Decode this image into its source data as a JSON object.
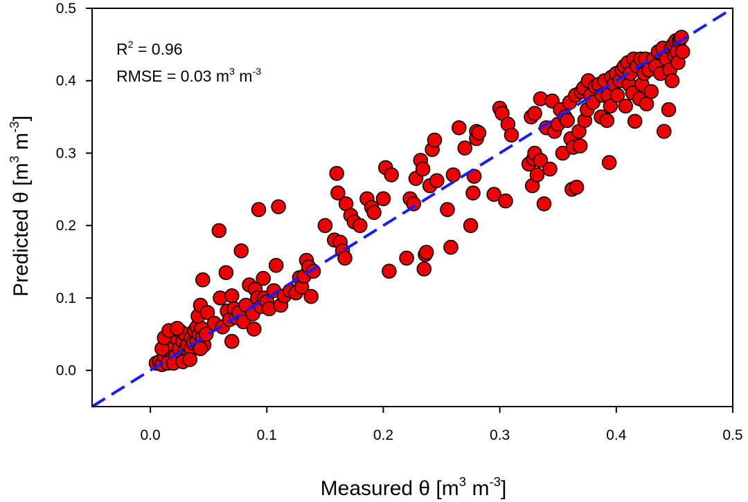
{
  "chart_data": {
    "type": "scatter",
    "title": "",
    "xlabel": {
      "prefix": "Measured θ [m",
      "sup1": "3",
      "mid": " m",
      "sup2": "-3",
      "suffix": "]"
    },
    "ylabel": {
      "prefix": "Predicted θ [m",
      "sup1": "3",
      "mid": " m",
      "sup2": "-3",
      "suffix": "]"
    },
    "xlim": [
      -0.05,
      0.5
    ],
    "ylim": [
      -0.05,
      0.5
    ],
    "xticks": [
      0.0,
      0.1,
      0.2,
      0.3,
      0.4,
      0.5
    ],
    "xtick_labels": [
      "0.0",
      "0.1",
      "0.2",
      "0.3",
      "0.4",
      "0.5"
    ],
    "yticks": [
      0.0,
      0.1,
      0.2,
      0.3,
      0.4,
      0.5
    ],
    "ytick_labels": [
      "0.0",
      "0.1",
      "0.2",
      "0.3",
      "0.4",
      "0.5"
    ],
    "grid": false,
    "annotations": {
      "r2": {
        "prefix": "R",
        "sup": "2",
        "suffix": " = 0.96"
      },
      "rmse": {
        "prefix": "RMSE = 0.03 m",
        "sup1": "3",
        "mid": " m",
        "sup2": "-3"
      }
    },
    "one_to_one_line": {
      "x": [
        -0.05,
        0.5
      ],
      "y": [
        -0.05,
        0.5
      ],
      "color": "#1a1aff",
      "style": "dashed"
    },
    "marker_color": "#ee0000",
    "marker_edge": "#000000",
    "points": [
      [
        0.005,
        0.01
      ],
      [
        0.008,
        0.012
      ],
      [
        0.01,
        0.008
      ],
      [
        0.012,
        0.02
      ],
      [
        0.013,
        0.03
      ],
      [
        0.015,
        0.025
      ],
      [
        0.016,
        0.04
      ],
      [
        0.018,
        0.05
      ],
      [
        0.018,
        0.015
      ],
      [
        0.02,
        0.035
      ],
      [
        0.022,
        0.045
      ],
      [
        0.022,
        0.02
      ],
      [
        0.025,
        0.03
      ],
      [
        0.025,
        0.055
      ],
      [
        0.027,
        0.018
      ],
      [
        0.028,
        0.04
      ],
      [
        0.03,
        0.028
      ],
      [
        0.03,
        0.05
      ],
      [
        0.032,
        0.035
      ],
      [
        0.033,
        0.022
      ],
      [
        0.035,
        0.045
      ],
      [
        0.035,
        0.03
      ],
      [
        0.037,
        0.038
      ],
      [
        0.038,
        0.055
      ],
      [
        0.04,
        0.04
      ],
      [
        0.04,
        0.06
      ],
      [
        0.042,
        0.05
      ],
      [
        0.044,
        0.058
      ],
      [
        0.045,
        0.045
      ],
      [
        0.046,
        0.035
      ],
      [
        0.01,
        0.03
      ],
      [
        0.015,
        0.01
      ],
      [
        0.02,
        0.01
      ],
      [
        0.028,
        0.012
      ],
      [
        0.034,
        0.015
      ],
      [
        0.012,
        0.045
      ],
      [
        0.016,
        0.055
      ],
      [
        0.023,
        0.058
      ],
      [
        0.043,
        0.03
      ],
      [
        0.048,
        0.05
      ],
      [
        0.041,
        0.075
      ],
      [
        0.043,
        0.09
      ],
      [
        0.045,
        0.125
      ],
      [
        0.049,
        0.08
      ],
      [
        0.055,
        0.065
      ],
      [
        0.059,
        0.193
      ],
      [
        0.06,
        0.1
      ],
      [
        0.062,
        0.06
      ],
      [
        0.065,
        0.135
      ],
      [
        0.066,
        0.082
      ],
      [
        0.068,
        0.07
      ],
      [
        0.07,
        0.103
      ],
      [
        0.07,
        0.04
      ],
      [
        0.072,
        0.085
      ],
      [
        0.074,
        0.073
      ],
      [
        0.076,
        0.08
      ],
      [
        0.078,
        0.165
      ],
      [
        0.08,
        0.067
      ],
      [
        0.082,
        0.09
      ],
      [
        0.085,
        0.118
      ],
      [
        0.088,
        0.078
      ],
      [
        0.089,
        0.057
      ],
      [
        0.09,
        0.112
      ],
      [
        0.092,
        0.1
      ],
      [
        0.093,
        0.222
      ],
      [
        0.095,
        0.088
      ],
      [
        0.097,
        0.127
      ],
      [
        0.098,
        0.1
      ],
      [
        0.1,
        0.095
      ],
      [
        0.102,
        0.085
      ],
      [
        0.106,
        0.11
      ],
      [
        0.108,
        0.145
      ],
      [
        0.11,
        0.226
      ],
      [
        0.112,
        0.09
      ],
      [
        0.115,
        0.103
      ],
      [
        0.12,
        0.11
      ],
      [
        0.125,
        0.107
      ],
      [
        0.128,
        0.128
      ],
      [
        0.13,
        0.115
      ],
      [
        0.132,
        0.13
      ],
      [
        0.134,
        0.152
      ],
      [
        0.136,
        0.143
      ],
      [
        0.138,
        0.102
      ],
      [
        0.14,
        0.137
      ],
      [
        0.15,
        0.2
      ],
      [
        0.158,
        0.18
      ],
      [
        0.16,
        0.272
      ],
      [
        0.161,
        0.245
      ],
      [
        0.163,
        0.177
      ],
      [
        0.165,
        0.165
      ],
      [
        0.167,
        0.155
      ],
      [
        0.168,
        0.23
      ],
      [
        0.172,
        0.214
      ],
      [
        0.175,
        0.205
      ],
      [
        0.18,
        0.2
      ],
      [
        0.186,
        0.237
      ],
      [
        0.19,
        0.225
      ],
      [
        0.192,
        0.218
      ],
      [
        0.2,
        0.237
      ],
      [
        0.202,
        0.28
      ],
      [
        0.205,
        0.137
      ],
      [
        0.207,
        0.27
      ],
      [
        0.22,
        0.155
      ],
      [
        0.223,
        0.237
      ],
      [
        0.226,
        0.23
      ],
      [
        0.228,
        0.265
      ],
      [
        0.232,
        0.29
      ],
      [
        0.234,
        0.278
      ],
      [
        0.235,
        0.14
      ],
      [
        0.236,
        0.16
      ],
      [
        0.237,
        0.163
      ],
      [
        0.24,
        0.255
      ],
      [
        0.242,
        0.305
      ],
      [
        0.244,
        0.318
      ],
      [
        0.246,
        0.262
      ],
      [
        0.255,
        0.222
      ],
      [
        0.258,
        0.17
      ],
      [
        0.26,
        0.27
      ],
      [
        0.265,
        0.335
      ],
      [
        0.27,
        0.307
      ],
      [
        0.275,
        0.2
      ],
      [
        0.277,
        0.245
      ],
      [
        0.278,
        0.268
      ],
      [
        0.28,
        0.33
      ],
      [
        0.28,
        0.32
      ],
      [
        0.282,
        0.328
      ],
      [
        0.295,
        0.243
      ],
      [
        0.3,
        0.362
      ],
      [
        0.302,
        0.355
      ],
      [
        0.305,
        0.234
      ],
      [
        0.307,
        0.34
      ],
      [
        0.31,
        0.325
      ],
      [
        0.325,
        0.285
      ],
      [
        0.327,
        0.35
      ],
      [
        0.328,
        0.255
      ],
      [
        0.329,
        0.292
      ],
      [
        0.33,
        0.355
      ],
      [
        0.33,
        0.3
      ],
      [
        0.332,
        0.27
      ],
      [
        0.335,
        0.375
      ],
      [
        0.335,
        0.29
      ],
      [
        0.338,
        0.23
      ],
      [
        0.34,
        0.335
      ],
      [
        0.343,
        0.278
      ],
      [
        0.345,
        0.372
      ],
      [
        0.347,
        0.33
      ],
      [
        0.35,
        0.34
      ],
      [
        0.352,
        0.36
      ],
      [
        0.354,
        0.3
      ],
      [
        0.356,
        0.35
      ],
      [
        0.358,
        0.345
      ],
      [
        0.36,
        0.37
      ],
      [
        0.361,
        0.32
      ],
      [
        0.362,
        0.25
      ],
      [
        0.363,
        0.308
      ],
      [
        0.365,
        0.38
      ],
      [
        0.366,
        0.253
      ],
      [
        0.368,
        0.33
      ],
      [
        0.369,
        0.31
      ],
      [
        0.37,
        0.385
      ],
      [
        0.372,
        0.39
      ],
      [
        0.373,
        0.345
      ],
      [
        0.375,
        0.36
      ],
      [
        0.376,
        0.4
      ],
      [
        0.378,
        0.38
      ],
      [
        0.38,
        0.37
      ],
      [
        0.382,
        0.392
      ],
      [
        0.385,
        0.395
      ],
      [
        0.387,
        0.35
      ],
      [
        0.388,
        0.38
      ],
      [
        0.39,
        0.4
      ],
      [
        0.392,
        0.345
      ],
      [
        0.393,
        0.38
      ],
      [
        0.394,
        0.287
      ],
      [
        0.395,
        0.365
      ],
      [
        0.396,
        0.405
      ],
      [
        0.398,
        0.395
      ],
      [
        0.4,
        0.41
      ],
      [
        0.401,
        0.38
      ],
      [
        0.403,
        0.4
      ],
      [
        0.405,
        0.415
      ],
      [
        0.407,
        0.42
      ],
      [
        0.408,
        0.365
      ],
      [
        0.41,
        0.425
      ],
      [
        0.411,
        0.395
      ],
      [
        0.412,
        0.41
      ],
      [
        0.414,
        0.383
      ],
      [
        0.415,
        0.43
      ],
      [
        0.416,
        0.344
      ],
      [
        0.418,
        0.42
      ],
      [
        0.42,
        0.375
      ],
      [
        0.421,
        0.43
      ],
      [
        0.422,
        0.395
      ],
      [
        0.424,
        0.41
      ],
      [
        0.425,
        0.43
      ],
      [
        0.426,
        0.368
      ],
      [
        0.428,
        0.415
      ],
      [
        0.43,
        0.385
      ],
      [
        0.432,
        0.43
      ],
      [
        0.434,
        0.42
      ],
      [
        0.436,
        0.44
      ],
      [
        0.438,
        0.41
      ],
      [
        0.44,
        0.445
      ],
      [
        0.441,
        0.33
      ],
      [
        0.443,
        0.43
      ],
      [
        0.445,
        0.36
      ],
      [
        0.446,
        0.415
      ],
      [
        0.447,
        0.445
      ],
      [
        0.448,
        0.4
      ],
      [
        0.449,
        0.45
      ],
      [
        0.45,
        0.435
      ],
      [
        0.451,
        0.455
      ],
      [
        0.452,
        0.44
      ],
      [
        0.453,
        0.425
      ],
      [
        0.454,
        0.455
      ],
      [
        0.455,
        0.458
      ],
      [
        0.456,
        0.46
      ],
      [
        0.457,
        0.44
      ]
    ]
  }
}
